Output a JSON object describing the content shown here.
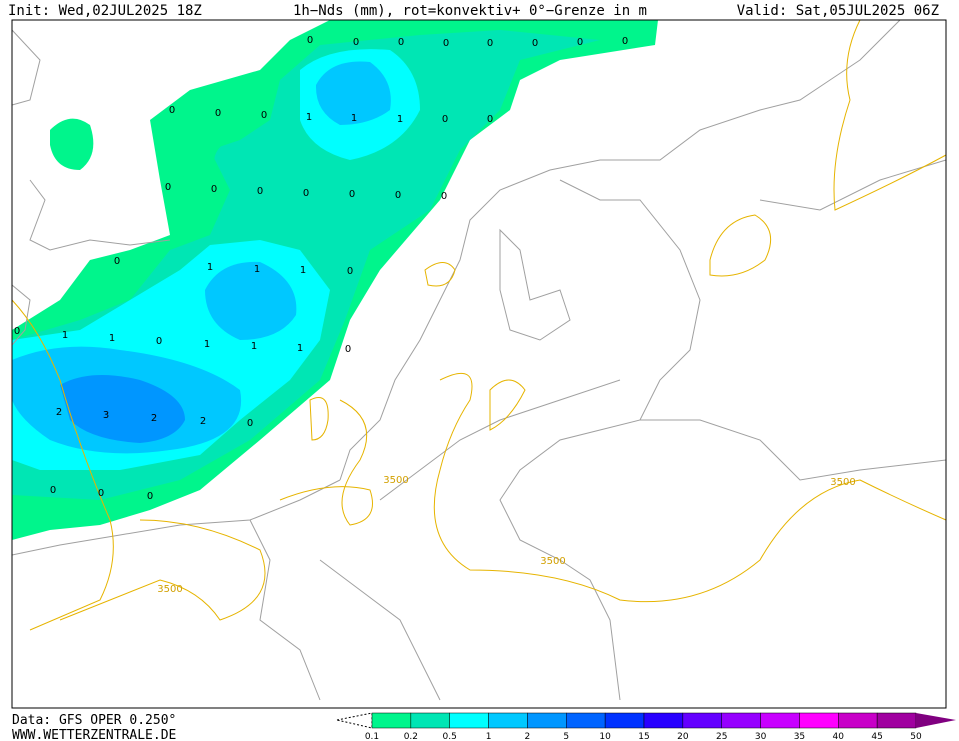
{
  "header": {
    "init": "Init: Wed,02JUL2025 18Z",
    "title": "1h−Nds (mm), rot=konvektiv+ 0°−Grenze in m",
    "valid": "Valid: Sat,05JUL2025 06Z"
  },
  "footer": {
    "data": "Data: GFS OPER 0.250°",
    "site": "WWW.WETTERZENTRALE.DE"
  },
  "grid_labels": [
    "0",
    "0",
    "0",
    "0",
    "0",
    "0",
    "0",
    "0",
    "0",
    "0",
    "0",
    "1",
    "1",
    "1",
    "0",
    "0",
    "0",
    "0",
    "0",
    "0",
    "0",
    "0",
    "0",
    "0",
    "1",
    "1",
    "1",
    "0",
    "0",
    "1",
    "1",
    "0",
    "1",
    "1",
    "1",
    "0",
    "2",
    "3",
    "2",
    "2",
    "0",
    "0",
    "0",
    "0"
  ],
  "contour_labels": [
    "3500",
    "3500",
    "3500",
    "3500"
  ],
  "legend": {
    "values": [
      0.1,
      0.2,
      0.5,
      1,
      2,
      5,
      10,
      15,
      20,
      25,
      30,
      35,
      40,
      45,
      50
    ],
    "colors": [
      "#00f58c",
      "#00e6b4",
      "#00ffff",
      "#00c8ff",
      "#0096ff",
      "#0064ff",
      "#0032ff",
      "#2800ff",
      "#6400ff",
      "#9600ff",
      "#c800ff",
      "#ff00ff",
      "#c800c8",
      "#a000a0",
      "#800080"
    ]
  }
}
